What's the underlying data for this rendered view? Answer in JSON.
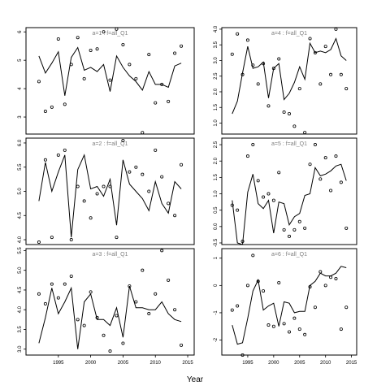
{
  "figure": {
    "xlabel": "Year"
  },
  "chart_data": [
    {
      "type": "line",
      "title": "a=1 : f=all_Q1",
      "xlim": [
        1990,
        2016
      ],
      "ylim": [
        2.4,
        6.15
      ],
      "yticks": [
        3,
        4,
        5,
        6
      ],
      "series": [
        {
          "kind": "line",
          "x": [
            1992,
            1993,
            1994,
            1995,
            1996,
            1997,
            1998,
            1999,
            2000,
            2001,
            2002,
            2003,
            2004,
            2005,
            2006,
            2007,
            2008,
            2009,
            2010,
            2011,
            2012,
            2013,
            2014,
            2015
          ],
          "y": [
            5.15,
            4.55,
            4.9,
            5.3,
            3.75,
            5.1,
            5.45,
            4.65,
            4.75,
            4.6,
            4.85,
            3.9,
            5.15,
            4.75,
            4.45,
            4.25,
            3.95,
            4.6,
            4.15,
            4.15,
            4.05,
            4.8,
            4.9,
            null
          ]
        },
        {
          "kind": "points",
          "x": [
            1992,
            1993,
            1994,
            1995,
            1996,
            1997,
            1998,
            1999,
            2000,
            2001,
            2002,
            2003,
            2004,
            2005,
            2006,
            2007,
            2008,
            2009,
            2010,
            2011,
            2012,
            2013,
            2014,
            2015
          ],
          "y": [
            4.25,
            3.2,
            3.35,
            5.75,
            3.45,
            4.85,
            5.8,
            4.35,
            5.35,
            5.4,
            6.0,
            4.3,
            6.1,
            5.55,
            4.85,
            4.35,
            2.45,
            5.2,
            3.5,
            4.15,
            3.55,
            5.25,
            5.5,
            null
          ]
        }
      ]
    },
    {
      "type": "line",
      "title": "a=4 : f=all_Q1",
      "xlim": [
        1990,
        2016
      ],
      "ylim": [
        0.65,
        4.05
      ],
      "yticks": [
        1.0,
        1.5,
        2.0,
        2.5,
        3.0,
        3.5,
        4.0
      ],
      "series": [
        {
          "kind": "line",
          "x": [
            1992,
            1993,
            1994,
            1995,
            1996,
            1997,
            1998,
            1999,
            2000,
            2001,
            2002,
            2003,
            2004,
            2005,
            2006,
            2007,
            2008,
            2009,
            2010,
            2011,
            2012,
            2013,
            2014,
            2015
          ],
          "y": [
            1.3,
            1.7,
            2.6,
            3.45,
            2.75,
            2.8,
            2.95,
            1.8,
            2.75,
            2.9,
            1.75,
            1.95,
            2.3,
            2.8,
            2.4,
            3.55,
            3.25,
            3.3,
            3.25,
            3.35,
            3.7,
            3.15,
            3.0,
            null
          ]
        },
        {
          "kind": "points",
          "x": [
            1992,
            1993,
            1994,
            1995,
            1996,
            1997,
            1998,
            1999,
            2000,
            2001,
            2002,
            2003,
            2004,
            2005,
            2006,
            2007,
            2008,
            2009,
            2010,
            2011,
            2012,
            2013,
            2014,
            2015
          ],
          "y": [
            3.2,
            3.85,
            2.55,
            3.65,
            2.85,
            2.25,
            2.9,
            1.55,
            2.75,
            3.05,
            1.35,
            1.3,
            0.9,
            2.1,
            0.7,
            3.7,
            3.25,
            2.25,
            3.45,
            2.55,
            4.0,
            2.55,
            2.1,
            null
          ]
        }
      ]
    },
    {
      "type": "line",
      "title": "a=2 : f=all_Q1",
      "xlim": [
        1990,
        2016
      ],
      "ylim": [
        3.9,
        6.1
      ],
      "yticks": [
        4.0,
        4.5,
        5.0,
        5.5,
        6.0
      ],
      "series": [
        {
          "kind": "line",
          "x": [
            1992,
            1993,
            1994,
            1995,
            1996,
            1997,
            1998,
            1999,
            2000,
            2001,
            2002,
            2003,
            2004,
            2005,
            2006,
            2007,
            2008,
            2009,
            2010,
            2011,
            2012,
            2013,
            2014,
            2015
          ],
          "y": [
            4.8,
            5.6,
            5.0,
            5.4,
            5.75,
            4.05,
            5.45,
            5.75,
            5.05,
            5.1,
            4.9,
            5.25,
            4.3,
            5.65,
            5.15,
            5.0,
            4.85,
            4.6,
            5.2,
            4.75,
            4.55,
            5.2,
            5.05,
            null
          ]
        },
        {
          "kind": "points",
          "x": [
            1992,
            1993,
            1994,
            1995,
            1996,
            1997,
            1998,
            1999,
            2000,
            2001,
            2002,
            2003,
            2004,
            2005,
            2006,
            2007,
            2008,
            2009,
            2010,
            2011,
            2012,
            2013,
            2014,
            2015
          ],
          "y": [
            3.95,
            5.65,
            4.05,
            5.75,
            5.85,
            4.0,
            5.1,
            4.8,
            4.45,
            4.95,
            5.1,
            5.1,
            4.05,
            6.05,
            5.4,
            5.5,
            5.35,
            5.0,
            5.85,
            5.3,
            4.75,
            4.5,
            5.55,
            null
          ]
        }
      ]
    },
    {
      "type": "line",
      "title": "a=5 : f=all_Q1",
      "xlim": [
        1990,
        2016
      ],
      "ylim": [
        -0.55,
        2.7
      ],
      "yticks": [
        -0.5,
        0.0,
        0.5,
        1.0,
        1.5,
        2.0,
        2.5
      ],
      "series": [
        {
          "kind": "line",
          "x": [
            1992,
            1993,
            1994,
            1995,
            1996,
            1997,
            1998,
            1999,
            2000,
            2001,
            2002,
            2003,
            2004,
            2005,
            2006,
            2007,
            2008,
            2009,
            2010,
            2011,
            2012,
            2013,
            2014,
            2015
          ],
          "y": [
            0.8,
            -0.5,
            -0.55,
            1.05,
            1.6,
            0.7,
            0.55,
            0.8,
            -0.2,
            0.75,
            0.7,
            0.05,
            0.3,
            0.4,
            0.95,
            1.0,
            1.8,
            1.55,
            1.6,
            1.7,
            1.85,
            1.9,
            1.4,
            null
          ]
        },
        {
          "kind": "points",
          "x": [
            1992,
            1993,
            1994,
            1995,
            1996,
            1997,
            1998,
            1999,
            2000,
            2001,
            2002,
            2003,
            2004,
            2005,
            2006,
            2007,
            2008,
            2009,
            2010,
            2011,
            2012,
            2013,
            2014,
            2015
          ],
          "y": [
            0.65,
            0.5,
            -0.45,
            2.15,
            2.5,
            1.4,
            0.9,
            1.0,
            0.8,
            1.65,
            -0.1,
            -0.3,
            -0.1,
            0.15,
            -0.05,
            1.9,
            2.5,
            1.45,
            2.1,
            1.1,
            2.15,
            1.35,
            -0.05,
            null
          ]
        }
      ]
    },
    {
      "type": "line",
      "title": "a=3 : f=all_Q1",
      "xlim": [
        1990,
        2016
      ],
      "ylim": [
        2.85,
        5.55
      ],
      "yticks": [
        3.0,
        3.5,
        4.0,
        4.5,
        5.0,
        5.5
      ],
      "series": [
        {
          "kind": "line",
          "x": [
            1992,
            1993,
            1994,
            1995,
            1996,
            1997,
            1998,
            1999,
            2000,
            2001,
            2002,
            2003,
            2004,
            2005,
            2006,
            2007,
            2008,
            2009,
            2010,
            2011,
            2012,
            2013,
            2014,
            2015
          ],
          "y": [
            3.15,
            3.8,
            4.55,
            3.9,
            4.2,
            4.55,
            3.0,
            4.2,
            4.4,
            3.75,
            3.75,
            3.6,
            4.05,
            3.3,
            4.6,
            4.05,
            4.05,
            4.0,
            4.0,
            4.2,
            3.9,
            3.75,
            3.7,
            null
          ]
        },
        {
          "kind": "points",
          "x": [
            1992,
            1993,
            1994,
            1995,
            1996,
            1997,
            1998,
            1999,
            2000,
            2001,
            2002,
            2003,
            2004,
            2005,
            2006,
            2007,
            2008,
            2009,
            2010,
            2011,
            2012,
            2013,
            2014,
            2015
          ],
          "y": [
            4.4,
            4.15,
            4.65,
            4.3,
            4.65,
            4.85,
            3.75,
            3.6,
            4.45,
            3.8,
            3.35,
            2.95,
            3.85,
            3.15,
            4.6,
            4.2,
            5.0,
            3.9,
            4.4,
            5.5,
            4.75,
            4.0,
            3.1,
            null
          ]
        }
      ]
    },
    {
      "type": "line",
      "title": "a=6 : f=all_Q1",
      "xlim": [
        1990,
        2016
      ],
      "ylim": [
        -2.55,
        1.35
      ],
      "yticks": [
        -2,
        -1,
        0,
        1
      ],
      "series": [
        {
          "kind": "line",
          "x": [
            1992,
            1993,
            1994,
            1995,
            1996,
            1997,
            1998,
            1999,
            2000,
            2001,
            2002,
            2003,
            2004,
            2005,
            2006,
            2007,
            2008,
            2009,
            2010,
            2011,
            2012,
            2013,
            2014,
            2015
          ],
          "y": [
            -1.45,
            -2.15,
            -2.1,
            -1.2,
            -0.2,
            0.2,
            -0.9,
            -0.75,
            -0.65,
            -1.5,
            -0.6,
            -0.65,
            -1.0,
            -0.95,
            -0.95,
            0.0,
            0.15,
            0.45,
            0.35,
            0.35,
            0.45,
            0.7,
            0.65,
            null
          ]
        },
        {
          "kind": "points",
          "x": [
            1992,
            1993,
            1994,
            1995,
            1996,
            1997,
            1998,
            1999,
            2000,
            2001,
            2002,
            2003,
            2004,
            2005,
            2006,
            2007,
            2008,
            2009,
            2010,
            2011,
            2012,
            2013,
            2014,
            2015
          ],
          "y": [
            -0.9,
            -0.75,
            -2.55,
            0.0,
            1.1,
            0.15,
            -0.2,
            -1.45,
            -1.5,
            0.1,
            -1.4,
            -1.7,
            -1.2,
            -1.6,
            -1.8,
            -0.05,
            -0.8,
            0.5,
            0.0,
            0.3,
            0.25,
            -1.6,
            -0.8,
            null
          ]
        }
      ]
    }
  ],
  "xticks": [
    1995,
    2000,
    2005,
    2010,
    2015
  ]
}
